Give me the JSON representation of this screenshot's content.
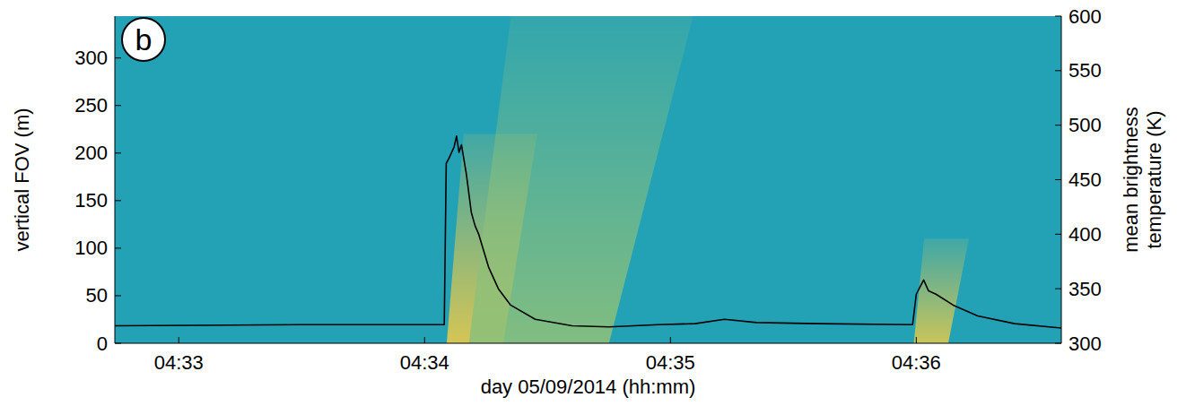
{
  "chart_data": {
    "type": "line",
    "panel_label": "b",
    "x_label": "day 05/09/2014 (hh:mm)",
    "y_label": "vertical FOV (m)",
    "y2_label": "mean brightness temperature (K)",
    "xlim": [
      32.74,
      36.59
    ],
    "xticks": [
      {
        "value": 33,
        "label": "04:33"
      },
      {
        "value": 34,
        "label": "04:34"
      },
      {
        "value": 35,
        "label": "04:35"
      },
      {
        "value": 36,
        "label": "04:36"
      }
    ],
    "ylim": [
      0,
      344
    ],
    "yticks": [
      0,
      50,
      100,
      150,
      200,
      250,
      300
    ],
    "y2lim": [
      300,
      600
    ],
    "y2ticks": [
      300,
      350,
      400,
      450,
      500,
      550,
      600
    ],
    "echoes": [
      {
        "start": 34.09,
        "end": 34.32,
        "top": 220,
        "color": "#e8c94a"
      },
      {
        "start": 34.18,
        "end": 34.75,
        "top": 344,
        "color": "#8cc07a"
      },
      {
        "start": 35.99,
        "end": 36.13,
        "top": 110,
        "color": "#dcc850"
      }
    ],
    "series": [
      {
        "name": "mean brightness temperature",
        "color": "#000000",
        "axis": "y2",
        "x": [
          32.74,
          33.5,
          34.08,
          34.088,
          34.1,
          34.12,
          34.13,
          34.14,
          34.15,
          34.17,
          34.19,
          34.205,
          34.22,
          34.26,
          34.3,
          34.35,
          34.45,
          34.6,
          34.75,
          34.95,
          35.1,
          35.22,
          35.35,
          35.6,
          35.985,
          36.0,
          36.03,
          36.05,
          36.08,
          36.15,
          36.25,
          36.4,
          36.59
        ],
        "values": [
          316,
          317,
          317,
          465,
          470,
          480,
          490,
          475,
          482,
          455,
          420,
          408,
          400,
          370,
          350,
          335,
          322,
          316,
          315,
          317,
          318,
          322,
          319,
          318,
          317,
          345,
          358,
          348,
          345,
          335,
          325,
          318,
          314
        ]
      }
    ]
  }
}
